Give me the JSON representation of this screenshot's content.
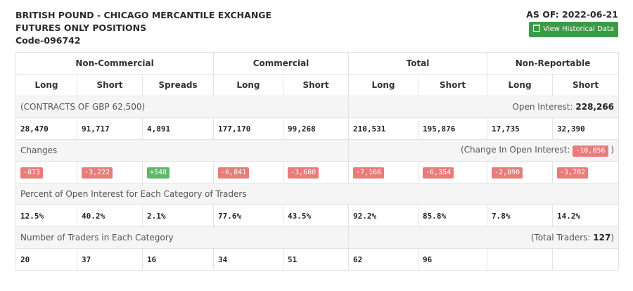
{
  "header": {
    "line1": "BRITISH POUND - CHICAGO MERCANTILE EXCHANGE",
    "line2": "FUTURES ONLY POSITIONS",
    "line3": "Code-096742",
    "as_of": "AS OF: 2022-06-21",
    "hist_button": "View Historical Data"
  },
  "groups": [
    "Non-Commercial",
    "Commercial",
    "Total",
    "Non-Reportable"
  ],
  "subheaders": [
    "Long",
    "Short",
    "Spreads",
    "Long",
    "Short",
    "Long",
    "Short",
    "Long",
    "Short"
  ],
  "contracts": {
    "label": "(CONTRACTS OF GBP 62,500)",
    "oi_label": "Open Interest:",
    "oi_value": "228,266",
    "values": [
      "28,470",
      "91,717",
      "4,891",
      "177,170",
      "99,268",
      "210,531",
      "195,876",
      "17,735",
      "32,390"
    ]
  },
  "changes": {
    "label": "Changes",
    "oi_prefix": "(Change In Open Interest:",
    "oi_value": "-10,056",
    "oi_suffix": ")",
    "values": [
      "-873",
      "-3,222",
      "+548",
      "-6,841",
      "-3,680",
      "-7,166",
      "-6,354",
      "-2,890",
      "-3,702"
    ]
  },
  "percent": {
    "label": "Percent of Open Interest for Each Category of Traders",
    "values": [
      "12.5%",
      "40.2%",
      "2.1%",
      "77.6%",
      "43.5%",
      "92.2%",
      "85.8%",
      "7.8%",
      "14.2%"
    ]
  },
  "traders": {
    "label": "Number of Traders in Each Category",
    "total_prefix": "(Total Traders:",
    "total_value": "127",
    "total_suffix": ")",
    "values": [
      "20",
      "37",
      "16",
      "34",
      "51",
      "62",
      "96",
      "",
      ""
    ]
  },
  "colors": {
    "negative": "#ea7b7b",
    "positive": "#5fb76a",
    "button": "#3c9a47"
  }
}
